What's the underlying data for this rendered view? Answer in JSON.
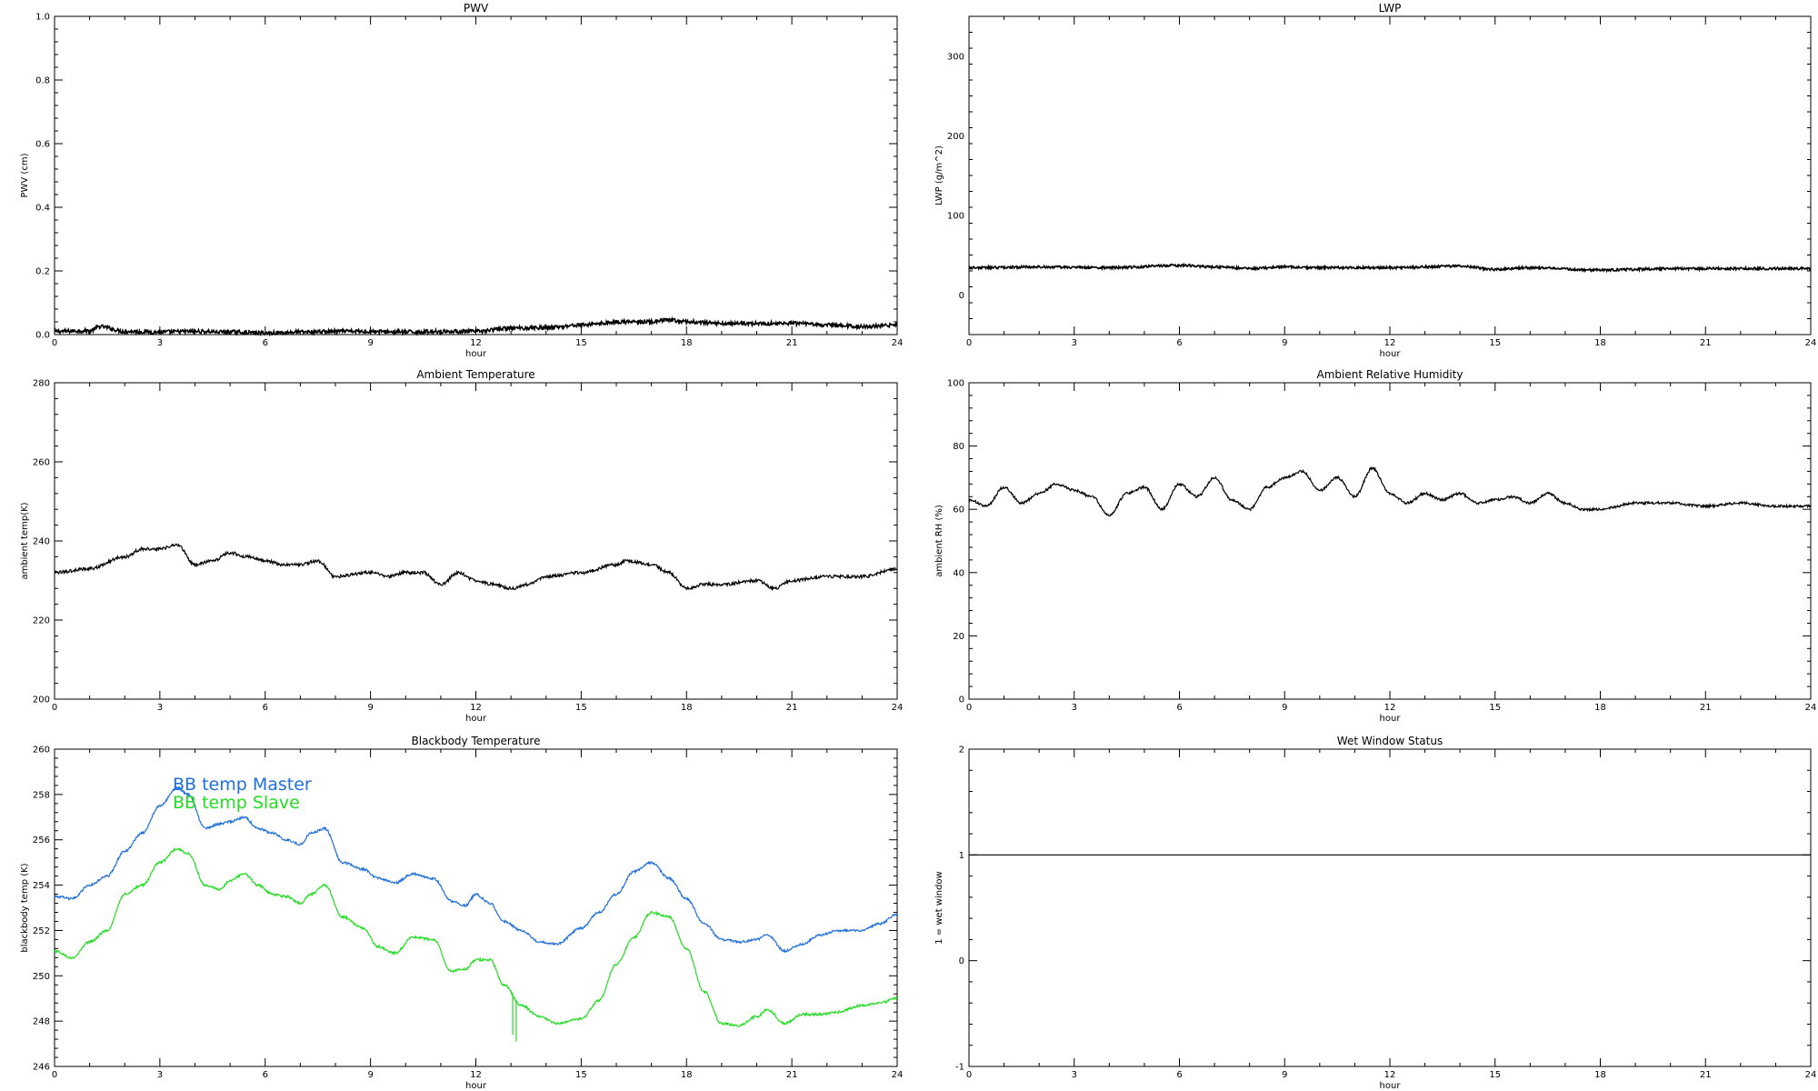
{
  "chart_data": [
    {
      "type": "line",
      "title": "PWV",
      "xlabel": "hour",
      "ylabel": "PWV (cm)",
      "xlim": [
        0,
        24
      ],
      "ylim": [
        0,
        1.0
      ],
      "xticks": [
        0,
        3,
        6,
        9,
        12,
        15,
        18,
        21,
        24
      ],
      "yticks": [
        0.0,
        0.2,
        0.4,
        0.6,
        0.8,
        1.0
      ],
      "ytick_labels": [
        "0.0",
        "0.2",
        "0.4",
        "0.6",
        "0.8",
        "1.0"
      ],
      "series": [
        {
          "color": "#000000",
          "noise": 0.006,
          "x": [
            0,
            1,
            1.3,
            2,
            3,
            4,
            5,
            6,
            7,
            8,
            9,
            10,
            11,
            12,
            13,
            14,
            15,
            15.5,
            16,
            17,
            17.5,
            18,
            19,
            20,
            21,
            22,
            23,
            24
          ],
          "y": [
            0.01,
            0.012,
            0.025,
            0.01,
            0.008,
            0.01,
            0.008,
            0.005,
            0.008,
            0.01,
            0.01,
            0.008,
            0.01,
            0.01,
            0.02,
            0.022,
            0.03,
            0.035,
            0.04,
            0.04,
            0.045,
            0.04,
            0.035,
            0.035,
            0.035,
            0.03,
            0.025,
            0.03
          ]
        }
      ]
    },
    {
      "type": "line",
      "title": "LWP",
      "xlabel": "hour",
      "ylabel": "LWP (g/m^2)",
      "xlim": [
        0,
        24
      ],
      "ylim": [
        -50,
        350
      ],
      "xticks": [
        0,
        3,
        6,
        9,
        12,
        15,
        18,
        21,
        24
      ],
      "yticks": [
        0,
        100,
        200,
        300
      ],
      "series": [
        {
          "color": "#000000",
          "noise": 1.5,
          "x": [
            0,
            2,
            4,
            6,
            7,
            8,
            9,
            10,
            12,
            14,
            15,
            16,
            18,
            20,
            22,
            24
          ],
          "y": [
            34,
            35,
            34,
            37,
            35,
            33,
            35,
            34,
            34,
            36,
            32,
            34,
            31,
            33,
            33,
            33
          ]
        }
      ]
    },
    {
      "type": "line",
      "title": "Ambient Temperature",
      "xlabel": "hour",
      "ylabel": "ambient temp(K)",
      "xlim": [
        0,
        24
      ],
      "ylim": [
        200,
        280
      ],
      "xticks": [
        0,
        3,
        6,
        9,
        12,
        15,
        18,
        21,
        24
      ],
      "yticks": [
        200,
        220,
        240,
        260,
        280
      ],
      "series": [
        {
          "color": "#000000",
          "noise": 0.4,
          "x": [
            0,
            1,
            2,
            2.5,
            3,
            3.5,
            4,
            4.5,
            5,
            5.5,
            6,
            6.5,
            7,
            7.5,
            8,
            9,
            9.5,
            10,
            10.5,
            11,
            11.5,
            12,
            12.5,
            13,
            13.5,
            14,
            15,
            16,
            16.3,
            17,
            17.5,
            18,
            18.5,
            19,
            20,
            20.5,
            21,
            22,
            23,
            24
          ],
          "y": [
            232,
            233,
            236,
            238,
            238,
            239,
            234,
            235,
            237,
            236,
            235,
            234,
            234,
            235,
            231,
            232,
            231,
            232,
            232,
            229,
            232,
            230,
            229,
            228,
            229,
            231,
            232,
            234,
            235,
            234,
            232,
            228,
            229,
            229,
            230,
            228,
            230,
            231,
            231,
            233
          ]
        }
      ]
    },
    {
      "type": "line",
      "title": "Ambient Relative Humidity",
      "xlabel": "hour",
      "ylabel": "ambient RH (%)",
      "xlim": [
        0,
        24
      ],
      "ylim": [
        0,
        100
      ],
      "xticks": [
        0,
        3,
        6,
        9,
        12,
        15,
        18,
        21,
        24
      ],
      "yticks": [
        0,
        20,
        40,
        60,
        80,
        100
      ],
      "series": [
        {
          "color": "#000000",
          "noise": 0.4,
          "x": [
            0,
            0.5,
            1,
            1.5,
            2,
            2.5,
            3,
            3.5,
            4,
            4.5,
            5,
            5.5,
            6,
            6.5,
            7,
            7.5,
            8,
            8.5,
            9,
            9.5,
            10,
            10.5,
            11,
            11.5,
            12,
            12.5,
            13,
            13.5,
            14,
            14.5,
            15,
            15.5,
            16,
            16.5,
            17,
            17.5,
            18,
            19,
            20,
            21,
            22,
            23,
            24
          ],
          "y": [
            63,
            61,
            67,
            62,
            65,
            68,
            66,
            64,
            58,
            65,
            67,
            60,
            68,
            64,
            70,
            63,
            60,
            67,
            70,
            72,
            66,
            70,
            64,
            73,
            65,
            62,
            65,
            63,
            65,
            62,
            63,
            64,
            62,
            65,
            62,
            60,
            60,
            62,
            62,
            61,
            62,
            61,
            61
          ]
        }
      ]
    },
    {
      "type": "line",
      "title": "Blackbody Temperature",
      "xlabel": "hour",
      "ylabel": "blackbody temp (K)",
      "xlim": [
        0,
        24
      ],
      "ylim": [
        246,
        260
      ],
      "xticks": [
        0,
        3,
        6,
        9,
        12,
        15,
        18,
        21,
        24
      ],
      "yticks": [
        246,
        248,
        250,
        252,
        254,
        256,
        258,
        260
      ],
      "series": [
        {
          "name": "BB temp Master",
          "color": "#1f6fdc",
          "noise": 0.05,
          "x": [
            0,
            0.5,
            1,
            1.5,
            2,
            2.5,
            3,
            3.5,
            3.8,
            4.3,
            4.7,
            5,
            5.4,
            5.8,
            6.2,
            6.6,
            7,
            7.3,
            7.7,
            8.2,
            8.8,
            9.2,
            9.7,
            10.2,
            10.8,
            11.3,
            11.7,
            12,
            12.4,
            12.8,
            13.3,
            13.8,
            14.3,
            15,
            15.5,
            16,
            16.5,
            17,
            17.5,
            18,
            18.5,
            19,
            19.5,
            20,
            20.3,
            20.8,
            21.3,
            21.8,
            22.3,
            23,
            23.5,
            24
          ],
          "y": [
            253.5,
            253.4,
            254.0,
            254.4,
            255.5,
            256.3,
            257.5,
            258.3,
            258.0,
            256.5,
            256.7,
            256.8,
            257.0,
            256.5,
            256.3,
            256.0,
            255.8,
            256.3,
            256.5,
            255.0,
            254.7,
            254.3,
            254.1,
            254.5,
            254.3,
            253.3,
            253.1,
            253.6,
            253.2,
            252.4,
            252.0,
            251.5,
            251.4,
            252.1,
            252.8,
            253.6,
            254.6,
            255.0,
            254.3,
            253.4,
            252.3,
            251.6,
            251.5,
            251.6,
            251.8,
            251.1,
            251.4,
            251.8,
            252.0,
            252.0,
            252.3,
            252.7
          ]
        },
        {
          "name": "BB temp Slave",
          "color": "#22dd22",
          "noise": 0.05,
          "x": [
            0,
            0.5,
            1,
            1.5,
            2,
            2.5,
            3,
            3.5,
            3.8,
            4.3,
            4.7,
            5,
            5.4,
            5.8,
            6.2,
            6.6,
            7,
            7.3,
            7.7,
            8.2,
            8.8,
            9.2,
            9.7,
            10.2,
            10.8,
            11.3,
            11.7,
            12,
            12.4,
            12.8,
            13.3,
            13.8,
            14.3,
            15,
            15.5,
            16,
            16.5,
            17,
            17.5,
            18,
            18.5,
            19,
            19.5,
            20,
            20.3,
            20.8,
            21.3,
            21.8,
            22.3,
            23,
            23.5,
            24
          ],
          "y": [
            251.1,
            250.8,
            251.5,
            252.0,
            253.6,
            254.0,
            255.0,
            255.6,
            255.4,
            254.0,
            253.8,
            254.2,
            254.5,
            254.0,
            253.6,
            253.5,
            253.2,
            253.6,
            254.0,
            252.6,
            252.1,
            251.3,
            251.0,
            251.7,
            251.6,
            250.2,
            250.3,
            250.7,
            250.7,
            249.6,
            248.7,
            248.2,
            247.9,
            248.1,
            248.9,
            250.5,
            251.7,
            252.8,
            252.6,
            251.2,
            249.3,
            247.9,
            247.8,
            248.2,
            248.5,
            247.9,
            248.3,
            248.3,
            248.4,
            248.7,
            248.8,
            249.0
          ],
          "spikes": [
            {
              "x": 13.05,
              "y": 247.4
            },
            {
              "x": 13.15,
              "y": 247.1
            }
          ]
        }
      ],
      "legend": "top-left"
    },
    {
      "type": "line",
      "title": "Wet Window Status",
      "xlabel": "hour",
      "ylabel": "1 = wet window",
      "xlim": [
        0,
        24
      ],
      "ylim": [
        -1,
        2
      ],
      "xticks": [
        0,
        3,
        6,
        9,
        12,
        15,
        18,
        21,
        24
      ],
      "yticks": [
        -1,
        0,
        1,
        2
      ],
      "series": [
        {
          "color": "#000000",
          "noise": 0,
          "x": [
            0,
            24
          ],
          "y": [
            1,
            1
          ]
        }
      ]
    }
  ]
}
